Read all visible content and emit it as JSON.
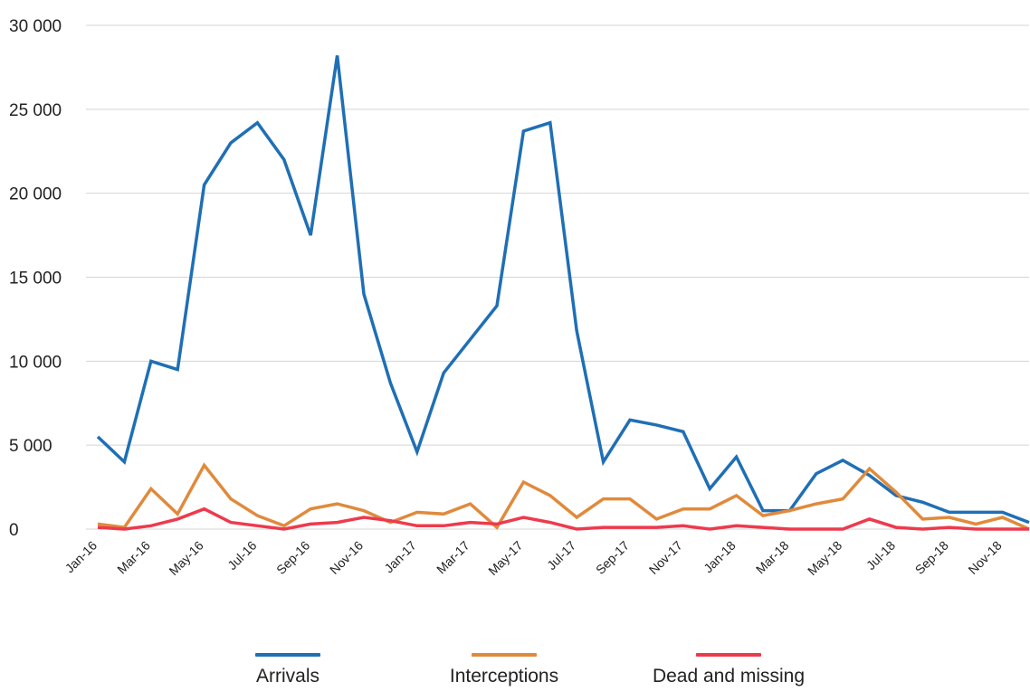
{
  "chart_data": {
    "type": "line",
    "x": [
      "Jan-16",
      "Feb-16",
      "Mar-16",
      "Apr-16",
      "May-16",
      "Jun-16",
      "Jul-16",
      "Aug-16",
      "Sep-16",
      "Oct-16",
      "Nov-16",
      "Dec-16",
      "Jan-17",
      "Feb-17",
      "Mar-17",
      "Apr-17",
      "May-17",
      "Jun-17",
      "Jul-17",
      "Aug-17",
      "Sep-17",
      "Oct-17",
      "Nov-17",
      "Dec-17",
      "Jan-18",
      "Feb-18",
      "Mar-18",
      "Apr-18",
      "May-18",
      "Jun-18",
      "Jul-18",
      "Aug-18",
      "Sep-18",
      "Oct-18",
      "Nov-18",
      "Dec-18"
    ],
    "xtick_labels": [
      "Jan-16",
      "Mar-16",
      "May-16",
      "Jul-16",
      "Sep-16",
      "Nov-16",
      "Jan-17",
      "Mar-17",
      "May-17",
      "Jul-17",
      "Sep-17",
      "Nov-17",
      "Jan-18",
      "Mar-18",
      "May-18",
      "Jul-18",
      "Sep-18",
      "Nov-18"
    ],
    "ylim": [
      0,
      30000
    ],
    "yticks": [
      0,
      5000,
      10000,
      15000,
      20000,
      25000,
      30000
    ],
    "ytick_labels": [
      "0",
      "5 000",
      "10 000",
      "15 000",
      "20 000",
      "25 000",
      "30 000"
    ],
    "grid": true,
    "legend_position": "bottom",
    "series": [
      {
        "name": "Arrivals",
        "color": "#1f6fb5",
        "values": [
          5500,
          4000,
          10000,
          9500,
          20500,
          23000,
          24200,
          22000,
          17500,
          28200,
          14000,
          8700,
          4600,
          9300,
          11300,
          13300,
          23700,
          24200,
          11800,
          4000,
          6500,
          6200,
          5800,
          2400,
          4300,
          1100,
          1100,
          3300,
          4100,
          3200,
          2000,
          1600,
          1000,
          1000,
          1000,
          400
        ]
      },
      {
        "name": "Interceptions",
        "color": "#e08a3c",
        "values": [
          300,
          100,
          2400,
          900,
          3800,
          1800,
          800,
          200,
          1200,
          1500,
          1100,
          400,
          1000,
          900,
          1500,
          100,
          2800,
          2000,
          700,
          1800,
          1800,
          600,
          1200,
          1200,
          2000,
          800,
          1100,
          1500,
          1800,
          3600,
          2200,
          600,
          700,
          300,
          700,
          0
        ]
      },
      {
        "name": "Dead and missing",
        "color": "#ee3a4d",
        "values": [
          100,
          0,
          200,
          600,
          1200,
          400,
          200,
          0,
          300,
          400,
          700,
          500,
          200,
          200,
          400,
          300,
          700,
          400,
          0,
          100,
          100,
          100,
          200,
          0,
          200,
          100,
          0,
          0,
          0,
          600,
          100,
          0,
          100,
          0,
          0,
          0
        ]
      }
    ]
  }
}
